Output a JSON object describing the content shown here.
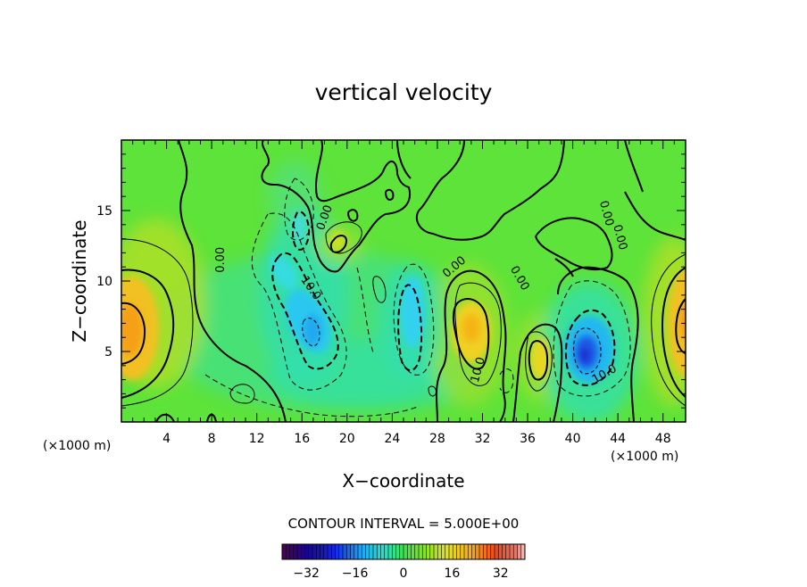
{
  "chart_data": {
    "type": "heatmap",
    "title": "vertical velocity",
    "xlabel": "X−coordinate",
    "ylabel": "Z−coordinate",
    "x_unit": "(×1000 m)",
    "z_unit": "(×1000 m)",
    "xlim": [
      0,
      50
    ],
    "ylim": [
      0,
      20
    ],
    "x_ticks": [
      "4",
      "8",
      "12",
      "16",
      "20",
      "24",
      "28",
      "32",
      "36",
      "40",
      "44",
      "48"
    ],
    "y_ticks": [
      "5",
      "10",
      "15"
    ],
    "contour_interval_text": "CONTOUR INTERVAL = 5.000E+00",
    "contour_interval": 5,
    "colorbar": {
      "ticks": [
        "−32",
        "−16",
        "0",
        "16",
        "32"
      ],
      "range": [
        -40,
        40
      ]
    },
    "contour_labels": [
      {
        "text": "0.00",
        "x": 8.8,
        "z": 11.5,
        "angle": -90
      },
      {
        "text": "0.00",
        "x": 18.0,
        "z": 14.5,
        "angle": -70
      },
      {
        "text": "10.0",
        "x": 16.8,
        "z": 9.5,
        "angle": 55
      },
      {
        "text": "0.00",
        "x": 29.5,
        "z": 11.0,
        "angle": -40
      },
      {
        "text": "0.00",
        "x": 35.3,
        "z": 10.2,
        "angle": 60
      },
      {
        "text": "10.0",
        "x": 31.6,
        "z": 3.7,
        "angle": -75
      },
      {
        "text": "0.00",
        "x": 43.0,
        "z": 14.8,
        "angle": 75
      },
      {
        "text": "0.00",
        "x": 44.2,
        "z": 13.1,
        "angle": 75
      },
      {
        "text": "10.0",
        "x": 42.8,
        "z": 3.4,
        "angle": -30
      }
    ],
    "features": [
      {
        "label": "updraft",
        "x": 0.8,
        "z": 6.5,
        "value": 22
      },
      {
        "label": "downdraft",
        "x": 16.8,
        "z": 6.5,
        "value": -22
      },
      {
        "label": "downdraft",
        "x": 25.3,
        "z": 8.2,
        "value": -17
      },
      {
        "label": "updraft",
        "x": 30.8,
        "z": 6.5,
        "value": 18
      },
      {
        "label": "updraft",
        "x": 37.2,
        "z": 4.5,
        "value": 14
      },
      {
        "label": "downdraft",
        "x": 41.2,
        "z": 4.8,
        "value": -30
      },
      {
        "label": "updraft",
        "x": 50.0,
        "z": 7.0,
        "value": 22
      }
    ]
  }
}
